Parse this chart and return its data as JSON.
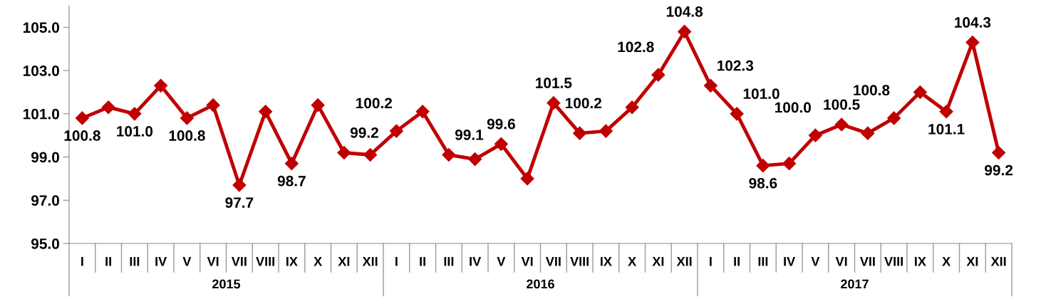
{
  "chart_data": {
    "type": "line",
    "categories": [
      "I",
      "II",
      "III",
      "IV",
      "V",
      "VI",
      "VII",
      "VIII",
      "IX",
      "X",
      "XI",
      "XII",
      "I",
      "II",
      "III",
      "IV",
      "V",
      "VI",
      "VII",
      "VIII",
      "IX",
      "X",
      "XI",
      "XII",
      "I",
      "II",
      "III",
      "IV",
      "V",
      "VI",
      "VII",
      "VIII",
      "IX",
      "X",
      "XI",
      "XII"
    ],
    "series": [
      {
        "color": "#c00000",
        "values": [
          100.8,
          101.3,
          101.0,
          102.3,
          100.8,
          101.4,
          97.7,
          101.1,
          98.7,
          101.4,
          99.2,
          99.1,
          100.2,
          101.1,
          99.1,
          98.9,
          99.6,
          98.0,
          101.5,
          100.1,
          100.2,
          101.3,
          102.8,
          104.8,
          102.3,
          101.0,
          98.6,
          98.7,
          100.0,
          100.5,
          100.1,
          100.8,
          102.0,
          101.1,
          104.3,
          99.2
        ],
        "value_labels": [
          "100.8",
          null,
          "101.0",
          null,
          "100.8",
          null,
          "97.7",
          null,
          "98.7",
          null,
          "99.2",
          null,
          "100.2",
          null,
          "99.1",
          null,
          "99.6",
          null,
          "101.5",
          null,
          "100.2",
          null,
          "102.8",
          "104.8",
          "102.3",
          "101.0",
          "98.6",
          null,
          "100.0",
          "100.5",
          null,
          "100.8",
          null,
          "101.1",
          "104.3",
          "99.2"
        ]
      }
    ],
    "annotations": [
      "2015",
      "2016",
      "2017"
    ],
    "ylim": [
      95,
      106
    ],
    "yticks": [
      {
        "value": 95,
        "label": "95.0"
      },
      {
        "value": 97,
        "label": "97.0"
      },
      {
        "value": 99,
        "label": "99.0"
      },
      {
        "value": 101,
        "label": "101.0"
      },
      {
        "value": 103,
        "label": "103.0"
      },
      {
        "value": 105,
        "label": "105.0"
      }
    ],
    "marker": "diamond",
    "line_style": "solid",
    "grid": false,
    "legend": false
  }
}
